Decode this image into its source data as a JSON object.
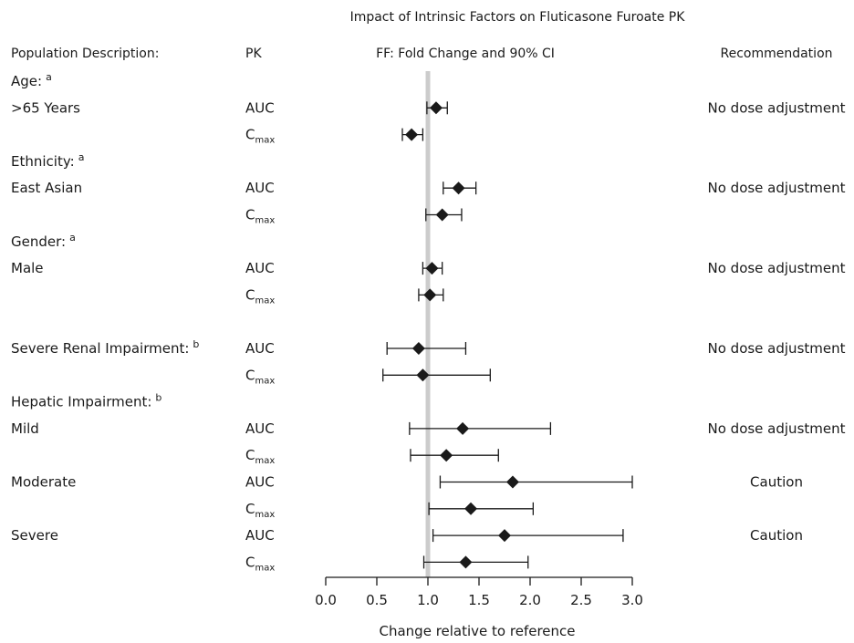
{
  "chart_data": {
    "type": "forest",
    "title": "Impact of Intrinsic Factors on Fluticasone Furoate PK",
    "headers": {
      "population": "Population Description:",
      "pk": "PK",
      "effect": "FF: Fold Change and 90% CI",
      "recommendation": "Recommendation"
    },
    "xlabel": "Change relative to reference",
    "xlim": [
      0.0,
      3.0
    ],
    "xticks": [
      "0.0",
      "0.5",
      "1.0",
      "1.5",
      "2.0",
      "2.5",
      "3.0"
    ],
    "reference_line": 1.0,
    "reference_color": "#cccccc",
    "marker": "diamond",
    "group_headers": [
      {
        "label": "Age:",
        "sup": "a",
        "row": 0
      },
      {
        "label": "Ethnicity:",
        "sup": "a",
        "row": 3
      },
      {
        "label": "Gender:",
        "sup": "a",
        "row": 6
      },
      {
        "label": "Hepatic Impairment:",
        "sup": "b",
        "row": 12
      }
    ],
    "rows": [
      {
        "row": 1,
        "label": "&gt;65  Years",
        "pk": "AUC",
        "est": 1.08,
        "lo": 0.99,
        "hi": 1.19,
        "rec": "No dose adjustment"
      },
      {
        "row": 2,
        "label": "",
        "pk": "C",
        "pk_sub": "max",
        "est": 0.84,
        "lo": 0.75,
        "hi": 0.95,
        "rec": ""
      },
      {
        "row": 4,
        "label": "East Asian",
        "pk": "AUC",
        "est": 1.3,
        "lo": 1.15,
        "hi": 1.47,
        "rec": "No dose adjustment"
      },
      {
        "row": 5,
        "label": "",
        "pk": "C",
        "pk_sub": "max",
        "est": 1.14,
        "lo": 0.98,
        "hi": 1.33,
        "rec": ""
      },
      {
        "row": 7,
        "label": "Male",
        "pk": "AUC",
        "est": 1.04,
        "lo": 0.95,
        "hi": 1.14,
        "rec": "No dose adjustment"
      },
      {
        "row": 8,
        "label": "",
        "pk": "C",
        "pk_sub": "max",
        "est": 1.02,
        "lo": 0.91,
        "hi": 1.15,
        "rec": ""
      },
      {
        "row": 10,
        "label": "Severe Renal Impairment:",
        "label_sup": "b",
        "pk": "AUC",
        "est": 0.91,
        "lo": 0.6,
        "hi": 1.37,
        "rec": "No dose adjustment"
      },
      {
        "row": 11,
        "label": "",
        "pk": "C",
        "pk_sub": "max",
        "est": 0.95,
        "lo": 0.56,
        "hi": 1.61,
        "rec": ""
      },
      {
        "row": 13,
        "label": "Mild",
        "pk": "AUC",
        "est": 1.34,
        "lo": 0.82,
        "hi": 2.2,
        "rec": "No dose adjustment"
      },
      {
        "row": 14,
        "label": "",
        "pk": "C",
        "pk_sub": "max",
        "est": 1.18,
        "lo": 0.83,
        "hi": 1.69,
        "rec": ""
      },
      {
        "row": 15,
        "label": "Moderate",
        "pk": "AUC",
        "est": 1.83,
        "lo": 1.12,
        "hi": 3.0,
        "rec": "Caution"
      },
      {
        "row": 16,
        "label": "",
        "pk": "C",
        "pk_sub": "max",
        "est": 1.42,
        "lo": 1.01,
        "hi": 2.03,
        "rec": ""
      },
      {
        "row": 17,
        "label": "Severe",
        "pk": "AUC",
        "est": 1.75,
        "lo": 1.05,
        "hi": 2.91,
        "rec": "Caution"
      },
      {
        "row": 18,
        "label": "",
        "pk": "C",
        "pk_sub": "max",
        "est": 1.37,
        "lo": 0.96,
        "hi": 1.98,
        "rec": ""
      }
    ]
  }
}
